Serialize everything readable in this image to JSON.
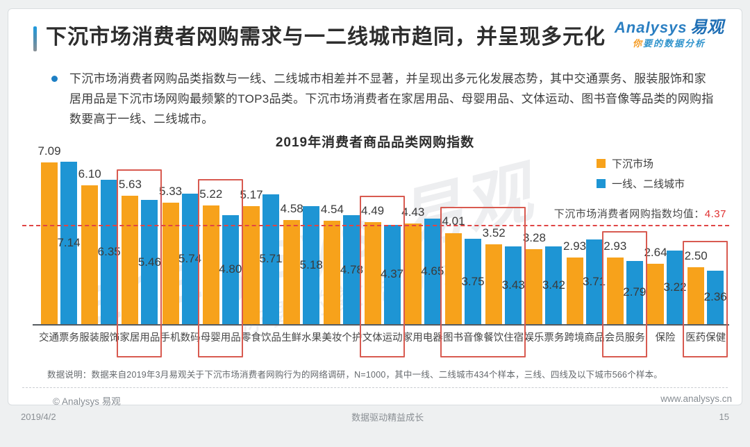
{
  "slide": {
    "title": "下沉市场消费者网购需求与一二线城市趋同，并呈现多元化",
    "bullet_text": "下沉市场消费者网购品类指数与一线、二线城市相差并不显著，并呈现出多元化发展态势，其中交通票务、服装服饰和家居用品是下沉市场网购最频繁的TOP3品类。下沉市场消费者在家居用品、母婴用品、文体运动、图书音像等品类的网购指数要高于一线、二线城市。",
    "footnote": "数据说明：数据来自2019年3月易观关于下沉市场消费者网购行为的网络调研，N=1000，其中一线、二线城市434个样本，三线、四线及以下城市566个样本。",
    "copyright": "© Analysys 易观",
    "website": "www.analysys.cn",
    "date": "2019/4/2",
    "slogan": "数据驱动精益成长",
    "page_number": "15"
  },
  "logo": {
    "brand": "Analysys",
    "brand_cn": "易观",
    "tagline_first": "你",
    "tagline_rest": "要的数据分析"
  },
  "watermark": {
    "line1": "analysys 易观",
    "line2": "你要的数据分析"
  },
  "chart_data": {
    "type": "bar",
    "title": "2019年消费者商品品类网购指数",
    "categories": [
      "交通票务",
      "服装服饰",
      "家居用品",
      "手机数码",
      "母婴用品",
      "零食饮品",
      "生鲜水果",
      "美妆个护",
      "文体运动",
      "家用电器",
      "图书音像",
      "餐饮住宿",
      "娱乐票务",
      "跨境商品",
      "会员服务",
      "保险",
      "医药保健"
    ],
    "series": [
      {
        "name": "下沉市场",
        "color": "#F7A21B",
        "values": [
          7.09,
          6.1,
          5.63,
          5.33,
          5.22,
          5.17,
          4.58,
          4.54,
          4.49,
          4.43,
          4.01,
          3.52,
          3.28,
          2.93,
          2.93,
          2.64,
          2.5
        ]
      },
      {
        "name": "一线、二线城市",
        "color": "#1E95D4",
        "values": [
          7.14,
          6.35,
          5.46,
          5.74,
          4.8,
          5.71,
          5.18,
          4.78,
          4.37,
          4.65,
          3.75,
          3.43,
          3.42,
          3.71,
          2.79,
          3.22,
          2.36
        ]
      }
    ],
    "ylim": [
      0,
      7.6
    ],
    "grid": false,
    "legend_position": "top-right",
    "annotation": {
      "label": "下沉市场消费者网购指数均值：",
      "value": "4.37",
      "line_value": 4.37
    },
    "highlights": [
      {
        "start": 2,
        "end": 2
      },
      {
        "start": 4,
        "end": 4
      },
      {
        "start": 8,
        "end": 8
      },
      {
        "start": 10,
        "end": 11
      },
      {
        "start": 14,
        "end": 14
      },
      {
        "start": 16,
        "end": 16
      }
    ],
    "highlight_color": "#D85A50"
  }
}
